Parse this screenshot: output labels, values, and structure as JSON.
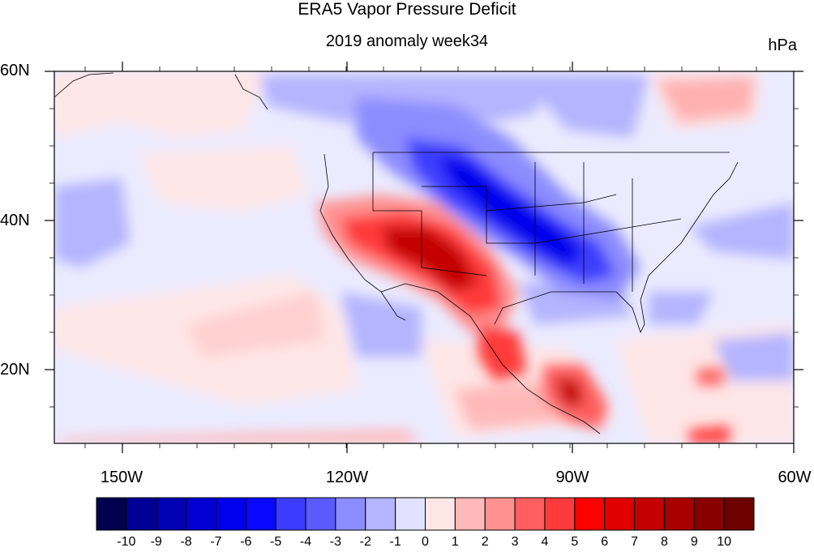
{
  "title": "ERA5 Vapor Pressure Deficit",
  "subtitle": "2019 anomaly week34",
  "units": "hPa",
  "y_ticks": [
    "60N",
    "40N",
    "20N"
  ],
  "x_ticks": [
    "150W",
    "120W",
    "90W",
    "60W"
  ],
  "colorbar": {
    "labels": [
      "-10",
      "-9",
      "-8",
      "-7",
      "-6",
      "-5",
      "-4",
      "-3",
      "-2",
      "-1",
      "0",
      "1",
      "2",
      "3",
      "4",
      "5",
      "6",
      "7",
      "8",
      "9",
      "10"
    ],
    "colors": [
      "#00004f",
      "#000096",
      "#0000b4",
      "#0000d2",
      "#0000ec",
      "#0808ff",
      "#3c3cff",
      "#5a5aff",
      "#8c8cff",
      "#b4b4ff",
      "#e2e2ff",
      "#ffe6e6",
      "#ffb9b9",
      "#ff9191",
      "#ff5f5f",
      "#ff3a3a",
      "#ff0000",
      "#e00000",
      "#c40000",
      "#a80000",
      "#880000",
      "#6e0000"
    ]
  }
}
